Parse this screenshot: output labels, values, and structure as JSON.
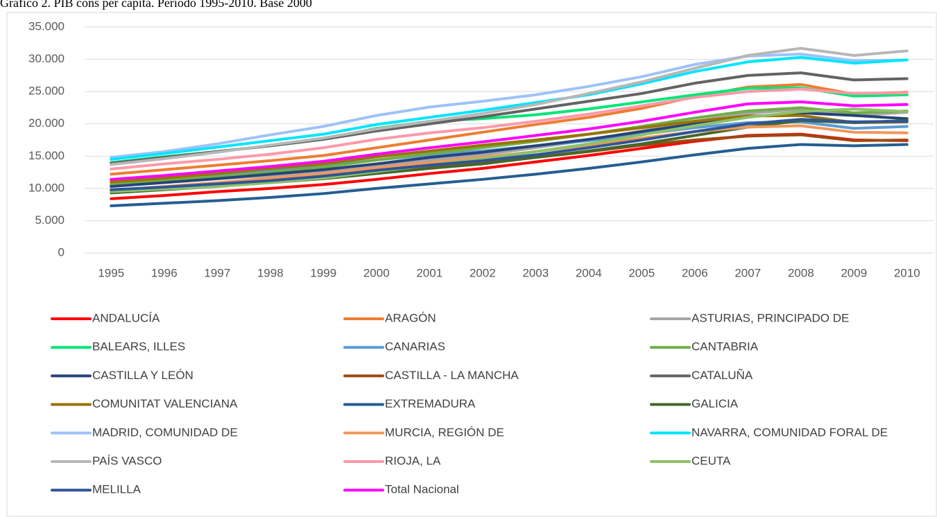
{
  "chart_data": {
    "type": "line",
    "title": "Gráfico 2. PIB cons per cápita. Periodo 1995-2010. Base 2000",
    "categories": [
      "1995",
      "1996",
      "1997",
      "1998",
      "1999",
      "2000",
      "2001",
      "2002",
      "2003",
      "2004",
      "2005",
      "2006",
      "2007",
      "2008",
      "2009",
      "2010"
    ],
    "ylim": [
      0,
      35000
    ],
    "yticks": [
      {
        "value": 0,
        "label": "0"
      },
      {
        "value": 5000,
        "label": "5.000"
      },
      {
        "value": 10000,
        "label": "10.000"
      },
      {
        "value": 15000,
        "label": "15.000"
      },
      {
        "value": 20000,
        "label": "20.000"
      },
      {
        "value": 25000,
        "label": "25.000"
      },
      {
        "value": 30000,
        "label": "30.000"
      },
      {
        "value": 35000,
        "label": "35.000"
      }
    ],
    "grid": true,
    "series": [
      {
        "name": "ANDALUCÍA",
        "color": "#ff0000",
        "values": [
          8400,
          8900,
          9500,
          10000,
          10600,
          11400,
          12300,
          13100,
          14100,
          15100,
          16200,
          17300,
          18200,
          18400,
          17500,
          17400
        ]
      },
      {
        "name": "ARAGÓN",
        "color": "#ed7d31",
        "values": [
          12200,
          12900,
          13600,
          14300,
          15100,
          16300,
          17500,
          18700,
          19900,
          21000,
          22400,
          24200,
          25700,
          26100,
          24600,
          24900
        ]
      },
      {
        "name": "ASTURIAS, PRINCIPADO DE",
        "color": "#a5a5a5",
        "values": [
          10600,
          11000,
          11500,
          12000,
          12700,
          13600,
          14400,
          15200,
          16300,
          17500,
          18900,
          20400,
          21600,
          22300,
          21300,
          21800
        ]
      },
      {
        "name": "BALEARS, ILLES",
        "color": "#00e676",
        "values": [
          14000,
          14900,
          15700,
          16600,
          17600,
          19300,
          20400,
          20800,
          21400,
          22300,
          23400,
          24500,
          25500,
          25600,
          24300,
          24500
        ]
      },
      {
        "name": "CANARIAS",
        "color": "#5b9bd5",
        "values": [
          11300,
          11700,
          12200,
          12800,
          13500,
          14400,
          15200,
          15800,
          16600,
          17400,
          18400,
          19400,
          20200,
          20300,
          19300,
          19600
        ]
      },
      {
        "name": "CANTABRIA",
        "color": "#70ad47",
        "values": [
          10600,
          11200,
          11800,
          12500,
          13300,
          14400,
          15400,
          16300,
          17300,
          18400,
          19600,
          20900,
          22000,
          22500,
          21700,
          22000
        ]
      },
      {
        "name": "CASTILLA Y LEÓN",
        "color": "#264478",
        "values": [
          10300,
          10900,
          11500,
          12200,
          12900,
          13800,
          14800,
          15600,
          16600,
          17600,
          18800,
          20000,
          21100,
          21700,
          21300,
          20800
        ]
      },
      {
        "name": "CASTILLA - LA MANCHA",
        "color": "#9e480e",
        "values": [
          9500,
          10000,
          10500,
          11000,
          11600,
          12400,
          13200,
          13900,
          14800,
          15700,
          16700,
          17500,
          18100,
          18300,
          17400,
          17500
        ]
      },
      {
        "name": "CATALUÑA",
        "color": "#636363",
        "values": [
          13900,
          14800,
          15700,
          16600,
          17600,
          18900,
          20000,
          21100,
          22300,
          23500,
          24700,
          26300,
          27500,
          27900,
          26800,
          27000
        ]
      },
      {
        "name": "COMUNITAT VALENCIANA",
        "color": "#997300",
        "values": [
          11000,
          11600,
          12300,
          13100,
          13800,
          14900,
          15800,
          16700,
          17500,
          18400,
          19400,
          20400,
          21200,
          21300,
          20200,
          20300
        ]
      },
      {
        "name": "EXTREMADURA",
        "color": "#255e91",
        "values": [
          7300,
          7700,
          8100,
          8600,
          9200,
          10000,
          10700,
          11400,
          12200,
          13100,
          14100,
          15200,
          16200,
          16800,
          16600,
          16800
        ]
      },
      {
        "name": "GALICIA",
        "color": "#43682b",
        "values": [
          9300,
          9800,
          10300,
          10900,
          11500,
          12300,
          13100,
          13800,
          14800,
          15800,
          16900,
          18200,
          19500,
          20500,
          20200,
          20500
        ]
      },
      {
        "name": "MADRID, COMUNIDAD DE",
        "color": "#9dc3f7",
        "values": [
          14800,
          15700,
          16900,
          18300,
          19600,
          21300,
          22600,
          23500,
          24500,
          25800,
          27300,
          29200,
          30500,
          30800,
          29800,
          29900
        ]
      },
      {
        "name": "MURCIA, REGIÓN DE",
        "color": "#f1975a",
        "values": [
          9700,
          10300,
          10900,
          11600,
          12300,
          13200,
          14000,
          14800,
          15700,
          16700,
          17800,
          18800,
          19500,
          19700,
          18700,
          18600
        ]
      },
      {
        "name": "NAVARRA, COMUNIDAD FORAL DE",
        "color": "#00e5ff",
        "values": [
          14500,
          15400,
          16400,
          17400,
          18400,
          19900,
          21000,
          22100,
          23300,
          24500,
          26200,
          28100,
          29600,
          30300,
          29400,
          29900
        ]
      },
      {
        "name": "PAÍS VASCO",
        "color": "#b7b7b7",
        "values": [
          13700,
          14600,
          15600,
          16700,
          17800,
          19200,
          20400,
          21600,
          23000,
          24700,
          26500,
          28600,
          30600,
          31700,
          30600,
          31300
        ]
      },
      {
        "name": "RIOJA, LA",
        "color": "#ff99aa",
        "values": [
          13000,
          13800,
          14500,
          15300,
          16300,
          17600,
          18600,
          19400,
          20400,
          21500,
          22800,
          24100,
          25000,
          25400,
          24700,
          24800
        ]
      },
      {
        "name": "CEUTA",
        "color": "#8cc168",
        "values": [
          9500,
          9900,
          10300,
          10900,
          11600,
          12600,
          13600,
          14600,
          15700,
          16900,
          18300,
          19700,
          21000,
          21900,
          22300,
          21900
        ]
      },
      {
        "name": "MELILLA",
        "color": "#2f5597",
        "values": [
          9800,
          10200,
          10700,
          11200,
          11900,
          12800,
          13600,
          14300,
          15200,
          16300,
          17500,
          18800,
          20000,
          20700,
          20300,
          20400
        ]
      },
      {
        "name": "Total Nacional",
        "color": "#ff00ff",
        "values": [
          11400,
          12000,
          12700,
          13400,
          14200,
          15300,
          16300,
          17200,
          18200,
          19200,
          20400,
          21800,
          23100,
          23400,
          22800,
          23000
        ]
      }
    ]
  }
}
